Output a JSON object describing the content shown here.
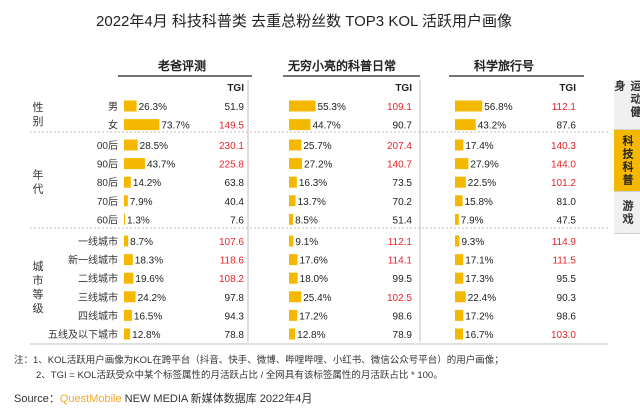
{
  "title": "2022年4月 科技科普类 去重总粉丝数 TOP3 KOL 活跃用户画像",
  "tabs": [
    {
      "label": "运动健身",
      "active": false
    },
    {
      "label": "科技科普",
      "active": true
    },
    {
      "label": "游戏",
      "active": false
    }
  ],
  "notes": [
    "注：1、KOL活跃用户画像为KOL在跨平台（抖音、快手、微博、哔哩哔哩、小红书、微信公众号平台）的用户画像；",
    "2、TGI = KOL活跃受众中某个标签属性的月活跃占比 / 全网具有该标签属性的月活跃占比 * 100。"
  ],
  "source": {
    "prefix": "Source：",
    "brand": "QuestMobile",
    "rest": " NEW MEDIA 新媒体数据库 2022年4月"
  },
  "colors": {
    "bar": "#f5b800",
    "tgi_high": "#e8232a",
    "tgi_normal": "#222222",
    "divider": "#bfbfbf"
  },
  "chart_data": {
    "type": "bar",
    "tgi_header": "TGI",
    "groups": [
      {
        "label": "性别",
        "categories": [
          "男",
          "女"
        ]
      },
      {
        "label": "年代",
        "categories": [
          "00后",
          "90后",
          "80后",
          "70后",
          "60后"
        ]
      },
      {
        "label": "城市等级",
        "categories": [
          "一线城市",
          "新一线城市",
          "二线城市",
          "三线城市",
          "四线城市",
          "五线及以下城市"
        ]
      }
    ],
    "series": [
      {
        "name": "老爸评测",
        "values": [
          "26.3%",
          "73.7%",
          "28.5%",
          "43.7%",
          "14.2%",
          "7.9%",
          "1.3%",
          "8.7%",
          "18.3%",
          "19.6%",
          "24.2%",
          "16.5%",
          "12.8%"
        ],
        "tgi": [
          "51.9",
          "149.5",
          "230.1",
          "225.8",
          "63.8",
          "40.4",
          "7.6",
          "107.6",
          "118.6",
          "108.2",
          "97.8",
          "94.3",
          "78.8"
        ]
      },
      {
        "name": "无穷小亮的科普日常",
        "values": [
          "55.3%",
          "44.7%",
          "25.7%",
          "27.2%",
          "16.3%",
          "13.7%",
          "8.5%",
          "9.1%",
          "17.6%",
          "18.0%",
          "25.4%",
          "17.2%",
          "12.8%"
        ],
        "tgi": [
          "109.1",
          "90.7",
          "207.4",
          "140.7",
          "73.5",
          "70.2",
          "51.4",
          "112.1",
          "114.1",
          "99.5",
          "102.5",
          "98.6",
          "78.9"
        ]
      },
      {
        "name": "科学旅行号",
        "values": [
          "56.8%",
          "43.2%",
          "17.4%",
          "27.9%",
          "22.5%",
          "15.8%",
          "7.9%",
          "9.3%",
          "17.1%",
          "17.3%",
          "22.4%",
          "17.2%",
          "16.7%"
        ],
        "tgi": [
          "112.1",
          "87.6",
          "140.3",
          "144.0",
          "101.2",
          "81.0",
          "47.5",
          "114.9",
          "111.5",
          "95.5",
          "90.3",
          "98.6",
          "103.0"
        ]
      }
    ]
  }
}
